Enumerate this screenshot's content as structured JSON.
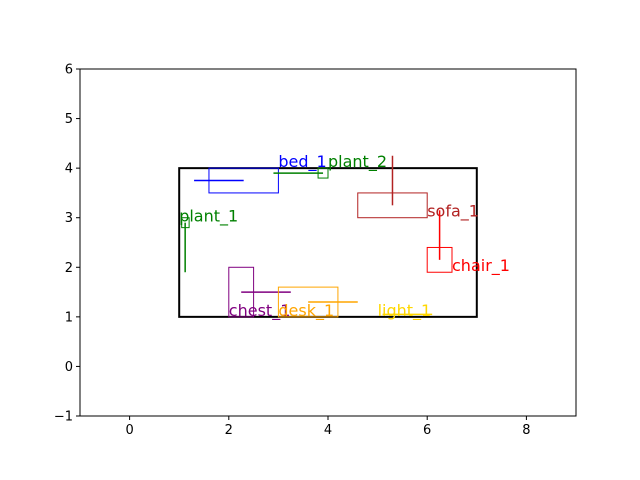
{
  "chart_data": {
    "type": "scatter",
    "title": "",
    "xlabel": "",
    "ylabel": "",
    "xlim": [
      -1,
      9
    ],
    "ylim": [
      -1,
      6
    ],
    "xticks": [
      0,
      2,
      4,
      6,
      8
    ],
    "yticks": [
      -1,
      0,
      1,
      2,
      3,
      4,
      5,
      6
    ],
    "grid": false,
    "legend": "none",
    "room": {
      "x0": 1,
      "y0": 1,
      "x1": 7,
      "y1": 4,
      "color": "#000000"
    },
    "objects": [
      {
        "name": "bed_1",
        "color": "#0000ff",
        "box": [
          1.6,
          3.5,
          3.0,
          4.0
        ],
        "line": [
          [
            1.3,
            3.75
          ],
          [
            2.3,
            3.75
          ]
        ],
        "label_at": [
          3.0,
          4.0
        ]
      },
      {
        "name": "plant_2",
        "color": "#008000",
        "box": [
          3.8,
          3.8,
          4.0,
          4.0
        ],
        "line": [
          [
            2.9,
            3.9
          ],
          [
            3.9,
            3.9
          ]
        ],
        "label_at": [
          4.0,
          4.0
        ]
      },
      {
        "name": "sofa_1",
        "color": "#b22222",
        "box": [
          4.6,
          3.0,
          6.0,
          3.5
        ],
        "line": [
          [
            5.3,
            3.25
          ],
          [
            5.3,
            4.25
          ]
        ],
        "label_at": [
          6.0,
          3.0
        ]
      },
      {
        "name": "plant_1",
        "color": "#008000",
        "box": [
          1.05,
          2.8,
          1.2,
          3.0
        ],
        "line": [
          [
            1.12,
            2.9
          ],
          [
            1.12,
            1.9
          ]
        ],
        "label_at": [
          1.0,
          2.9
        ]
      },
      {
        "name": "chair_1",
        "color": "#ff0000",
        "box": [
          6.0,
          1.9,
          6.5,
          2.4
        ],
        "line": [
          [
            6.25,
            2.15
          ],
          [
            6.25,
            3.15
          ]
        ],
        "label_at": [
          6.5,
          1.9
        ]
      },
      {
        "name": "chest_1",
        "color": "#800080",
        "box": [
          2.0,
          1.0,
          2.5,
          2.0
        ],
        "line": [
          [
            2.25,
            1.5
          ],
          [
            3.25,
            1.5
          ]
        ],
        "label_at": [
          2.0,
          1.0
        ]
      },
      {
        "name": "desk_1",
        "color": "#ffa500",
        "box": [
          3.0,
          1.0,
          4.2,
          1.6
        ],
        "line": [
          [
            3.6,
            1.3
          ],
          [
            4.6,
            1.3
          ]
        ],
        "label_at": [
          3.0,
          1.0
        ]
      },
      {
        "name": "light_1",
        "color": "#ffd700",
        "box": null,
        "line": [
          [
            5.1,
            1.05
          ],
          [
            6.1,
            1.05
          ]
        ],
        "label_at": [
          5.0,
          1.0
        ]
      }
    ]
  }
}
